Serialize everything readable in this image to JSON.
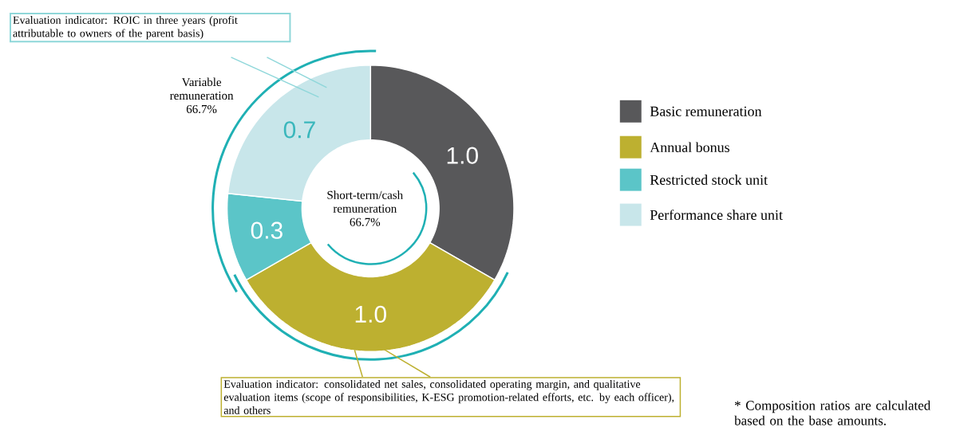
{
  "chart_data": {
    "type": "donut",
    "categories": [
      "Basic remuneration",
      "Annual bonus",
      "Restricted stock unit",
      "Performance share unit"
    ],
    "values": [
      1.0,
      1.0,
      0.3,
      0.7
    ],
    "colors": [
      "#58585a",
      "#bdb030",
      "#5bc5c8",
      "#c8e6ea"
    ],
    "value_labels": [
      "1.0",
      "1.0",
      "0.3",
      "0.7"
    ],
    "legend": "right",
    "annotations": [
      "Evaluation indicator: ROIC in three years (profit attributable to owners of the parent basis)",
      "Variable remuneration 66.7%",
      "Short-term/cash remuneration 66.7%",
      "Evaluation indicator: consolidated net sales, consolidated operating margin, and qualitative evaluation items (scope of responsibilities, K-ESG promotion-related efforts, etc. by each officer), and others",
      "* Composition ratios are calculated based on the base amounts."
    ]
  }
}
